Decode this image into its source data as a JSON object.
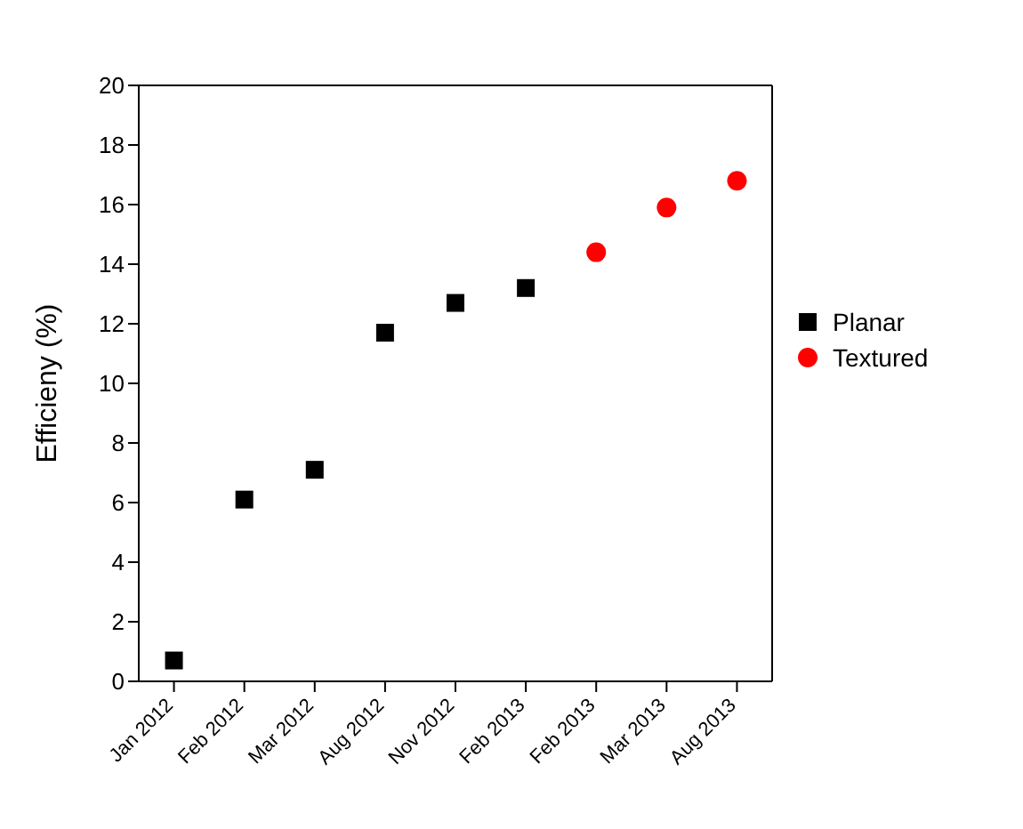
{
  "chart_data": {
    "type": "scatter",
    "ylabel": "Efficieny (%)",
    "categories": [
      "Jan 2012",
      "Feb 2012",
      "Mar 2012",
      "Aug 2012",
      "Nov 2012",
      "Feb 2013",
      "Feb 2013",
      "Mar 2013",
      "Aug 2013"
    ],
    "series": [
      {
        "name": "Planar",
        "color": "#000000",
        "marker": "square",
        "values": [
          0.7,
          6.1,
          7.1,
          11.7,
          12.7,
          13.2,
          null,
          null,
          null
        ]
      },
      {
        "name": "Textured",
        "color": "#ff0000",
        "marker": "circle",
        "values": [
          null,
          null,
          null,
          null,
          null,
          null,
          14.4,
          15.9,
          16.8
        ]
      }
    ],
    "ylim": [
      0,
      20
    ],
    "yticks": [
      0,
      2,
      4,
      6,
      8,
      10,
      12,
      14,
      16,
      18,
      20
    ],
    "legend": "right"
  }
}
